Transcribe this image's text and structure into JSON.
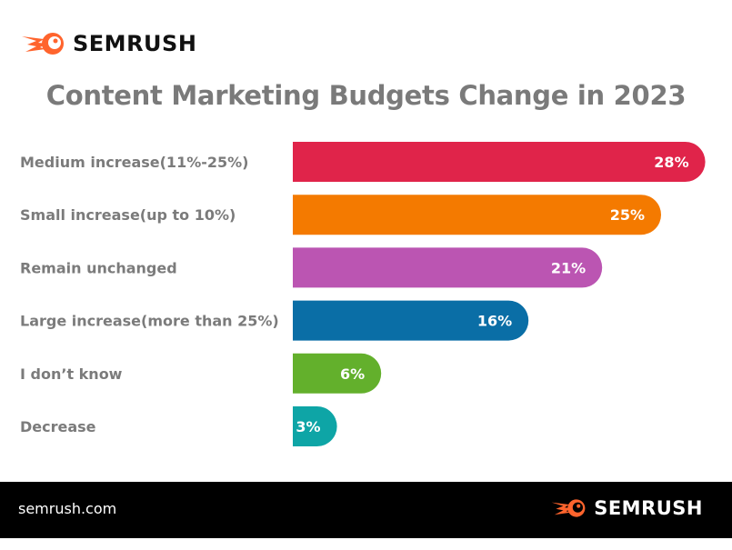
{
  "brand": {
    "name": "SEMRUSH",
    "color": "#ff642d"
  },
  "footer": {
    "site": "semrush.com"
  },
  "chart_data": {
    "type": "bar",
    "orientation": "horizontal",
    "title": "Content Marketing Budgets Change in 2023",
    "categories": [
      "Medium increase(11%-25%)",
      "Small increase(up to 10%)",
      "Remain unchanged",
      "Large increase(more than  25%)",
      "I don’t know",
      "Decrease"
    ],
    "values": [
      28,
      25,
      21,
      16,
      6,
      3
    ],
    "labels": [
      "28%",
      "25%",
      "21%",
      "16%",
      "6%",
      "3%"
    ],
    "colors": [
      "#e0244a",
      "#f47a00",
      "#bb55b2",
      "#0a6ea6",
      "#63b02c",
      "#0ea5a6"
    ],
    "unit": "%",
    "grid": false,
    "legend": "none"
  }
}
